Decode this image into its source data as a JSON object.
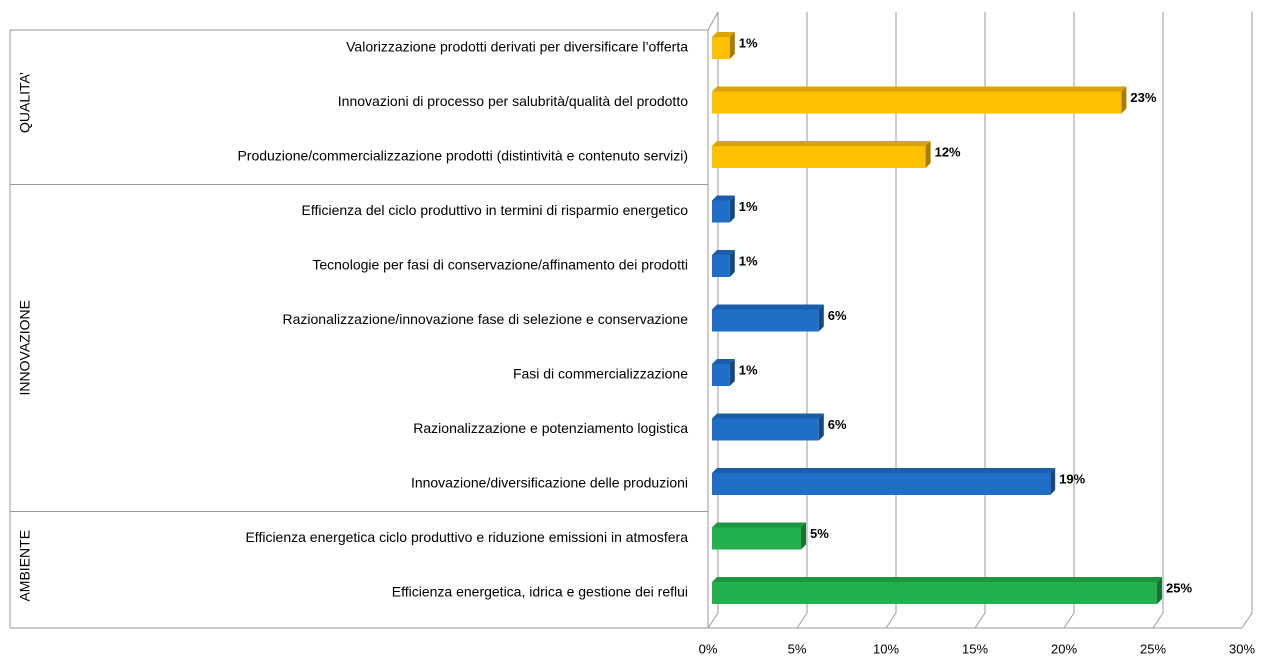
{
  "chart_data": {
    "type": "bar",
    "orientation": "horizontal",
    "groups": [
      {
        "name": "QUALITA’",
        "color": "#FFC000",
        "categories": [
          "Valorizzazione prodotti derivati per diversificare l’offerta",
          "Innovazioni di processo per salubrità/qualità del prodotto",
          "Produzione/commercializzazione prodotti (distintività e contenuto servizi)"
        ],
        "values": [
          1,
          23,
          12
        ],
        "value_labels": [
          "1%",
          "23%",
          "12%"
        ]
      },
      {
        "name": "INNOVAZIONE",
        "color": "#1F6FC9",
        "categories": [
          "Efficienza del ciclo produttivo in termini di risparmio energetico",
          "Tecnologie per fasi di conservazione/affinamento dei prodotti",
          "Razionalizzazione/innovazione fase di selezione e conservazione",
          "Fasi di commercializzazione",
          "Razionalizzazione e potenziamento logistica",
          "Innovazione/diversificazione delle produzioni"
        ],
        "values": [
          1,
          1,
          6,
          1,
          6,
          19
        ],
        "value_labels": [
          "1%",
          "1%",
          "6%",
          "1%",
          "6%",
          "19%"
        ]
      },
      {
        "name": "AMBIENTE",
        "color": "#22B14C",
        "categories": [
          "Efficienza energetica ciclo produttivo e riduzione emissioni in atmosfera",
          "Efficienza energetica, idrica e gestione dei reflui"
        ],
        "values": [
          5,
          25
        ],
        "value_labels": [
          "5%",
          "25%"
        ]
      }
    ],
    "xlim": [
      0,
      30
    ],
    "xticks": [
      {
        "value": 0,
        "label": "0%"
      },
      {
        "value": 5,
        "label": "5%"
      },
      {
        "value": 10,
        "label": "10%"
      },
      {
        "value": 15,
        "label": "15%"
      },
      {
        "value": 20,
        "label": "20%"
      },
      {
        "value": 25,
        "label": "25%"
      },
      {
        "value": 30,
        "label": "30%"
      }
    ],
    "grid": true
  }
}
